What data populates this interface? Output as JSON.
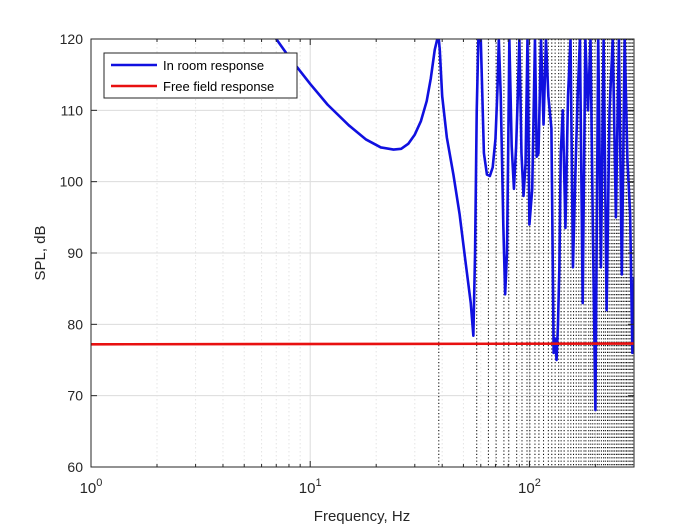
{
  "chart_data": {
    "type": "line",
    "title": "",
    "xlabel": "Frequency, Hz",
    "ylabel": "SPL, dB",
    "xscale": "log",
    "xlim": [
      1,
      300
    ],
    "ylim": [
      60,
      120
    ],
    "xticks": [
      {
        "value": 1,
        "base": "10",
        "exp": "0"
      },
      {
        "value": 10,
        "base": "10",
        "exp": "1"
      },
      {
        "value": 100,
        "base": "10",
        "exp": "2"
      }
    ],
    "yticks": [
      "60",
      "70",
      "80",
      "90",
      "100",
      "110",
      "120"
    ],
    "grid": true,
    "legend_position": "top-left",
    "series": [
      {
        "name": "In room response",
        "color": "#1010e0",
        "x": [
          7.0,
          8.0,
          10.0,
          12.0,
          15.0,
          18.0,
          21.0,
          24.0,
          26.0,
          28.0,
          30.0,
          32.0,
          34.0,
          35.5,
          37.0,
          38.0,
          38.6,
          39.0,
          40.0,
          42.0,
          45.0,
          48.0,
          51.0,
          54.0,
          55.5,
          56.5,
          57.5,
          58.5,
          60.0,
          62.0,
          64.0,
          66.0,
          68.0,
          70.0,
          71.5,
          72.5,
          74.0,
          76.0,
          77.5,
          79.0,
          80.0,
          81.0,
          83.0,
          85.0,
          87.0,
          88.5,
          90.0,
          92.0,
          94.0,
          96.0,
          98.0,
          100.0,
          103.0,
          106.0,
          108.0,
          110.0,
          113.0,
          116.0,
          119.0,
          122.0,
          126.0,
          129.0,
          131.0,
          133.0,
          135.0,
          137.0,
          139.0,
          142.0,
          146.0,
          150.0,
          154.0,
          158.0,
          162.0,
          166.0,
          170.0,
          175.0,
          180.0,
          185.0,
          190.0,
          195.0,
          200.0,
          206.0,
          212.0,
          218.0,
          225.0,
          232.0,
          240.0,
          248.0,
          256.0,
          264.0,
          272.0,
          280.0,
          288.0,
          295.0,
          300.0
        ],
        "y": [
          120,
          117.5,
          113.7,
          110.8,
          107.9,
          105.9,
          104.8,
          104.5,
          104.6,
          105.3,
          106.6,
          108.5,
          111.3,
          114.5,
          118.5,
          120,
          120,
          118.5,
          112.0,
          106.2,
          101.0,
          95.5,
          89.0,
          83.0,
          78.4,
          90.0,
          110.0,
          120,
          120,
          104.0,
          101.0,
          100.8,
          102.0,
          106.0,
          113.0,
          120,
          112.0,
          94.0,
          84.2,
          90.0,
          104.0,
          120,
          105.0,
          99.0,
          105.0,
          112.0,
          120,
          104.0,
          98.0,
          102.5,
          120,
          94.0,
          99.0,
          120,
          103.5,
          104.0,
          120,
          108.0,
          120,
          112.0,
          107.5,
          76.0,
          78.0,
          75.0,
          80.0,
          88.0,
          104.0,
          110.0,
          93.5,
          112.0,
          120,
          88.0,
          101.0,
          112.0,
          120,
          83.0,
          120,
          110.0,
          120,
          92.0,
          68.0,
          120,
          88.0,
          120,
          82.0,
          110.0,
          120,
          95.0,
          120,
          87.0,
          120,
          103.0,
          95.5,
          76.0,
          86.5
        ]
      },
      {
        "name": "Free field response",
        "color": "#e81010",
        "x": [
          1,
          300
        ],
        "y": [
          77.2,
          77.3
        ]
      }
    ],
    "resonance_lines": [
      38.6,
      57.5,
      65.0,
      70.5,
      76.5,
      80.5,
      87.5,
      92.5,
      97.5,
      100.5,
      106.0,
      110.5,
      116.0,
      122.0,
      126.5,
      131.0,
      136.0,
      139.5,
      144.0,
      150.0,
      154.5,
      159.0,
      163.5,
      168.0,
      172.0,
      177.5,
      181.0,
      186.5,
      190.5,
      194.5,
      199.0,
      204.0,
      208.0,
      213.0,
      218.0,
      222.0,
      227.0,
      231.0,
      236.0,
      240.5,
      245.0,
      250.0,
      254.0,
      259.0,
      263.5,
      268.0,
      273.0,
      277.5,
      282.0,
      287.0,
      291.0,
      296.0
    ]
  }
}
